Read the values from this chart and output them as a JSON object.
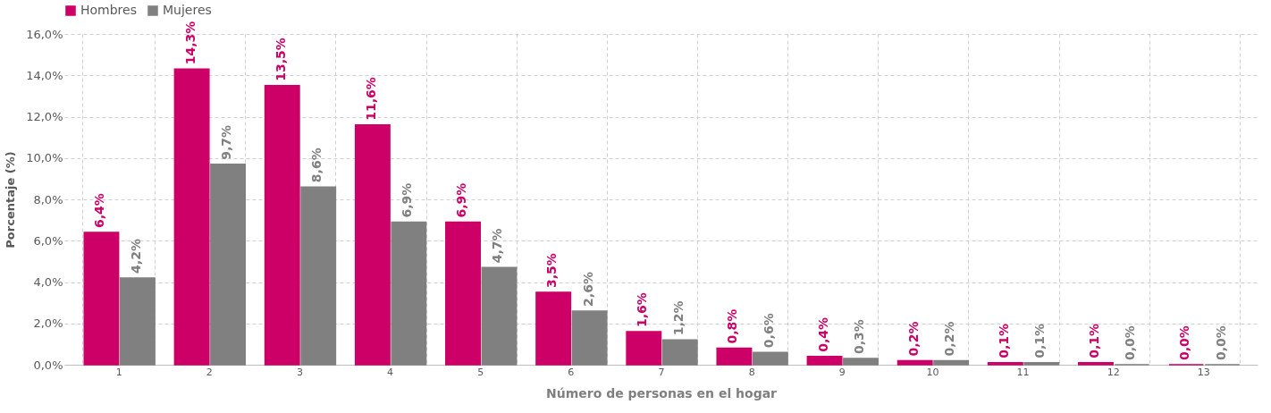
{
  "chart_data": {
    "type": "bar",
    "xlabel": "Número de personas en el hogar",
    "ylabel": "Porcentaje (%)",
    "categories": [
      "1",
      "2",
      "3",
      "4",
      "5",
      "6",
      "7",
      "8",
      "9",
      "10",
      "11",
      "12",
      "13"
    ],
    "series": [
      {
        "name": "Hombres",
        "color": "#cc0066",
        "values": [
          6.4,
          14.3,
          13.5,
          11.6,
          6.9,
          3.5,
          1.6,
          0.8,
          0.4,
          0.2,
          0.1,
          0.1,
          0.0
        ],
        "value_labels": [
          "6,4%",
          "14,3%",
          "13,5%",
          "11,6%",
          "6,9%",
          "3,5%",
          "1,6%",
          "0,8%",
          "0,4%",
          "0,2%",
          "0,1%",
          "0,1%",
          "0,0%"
        ]
      },
      {
        "name": "Mujeres",
        "color": "#808080",
        "values": [
          4.2,
          9.7,
          8.6,
          6.9,
          4.7,
          2.6,
          1.2,
          0.6,
          0.3,
          0.2,
          0.1,
          0.0,
          0.0
        ],
        "value_labels": [
          "4,2%",
          "9,7%",
          "8,6%",
          "6,9%",
          "4,7%",
          "2,6%",
          "1,2%",
          "0,6%",
          "0,3%",
          "0,2%",
          "0,1%",
          "0,0%",
          "0,0%"
        ]
      }
    ],
    "ylim": [
      0,
      16
    ],
    "yticks": [
      {
        "value": 0,
        "label": "0,0%"
      },
      {
        "value": 2,
        "label": "2,0%"
      },
      {
        "value": 4,
        "label": "4,0%"
      },
      {
        "value": 6,
        "label": "6,0%"
      },
      {
        "value": 8,
        "label": "8,0%"
      },
      {
        "value": 10,
        "label": "10,0%"
      },
      {
        "value": 12,
        "label": "12,0%"
      },
      {
        "value": 14,
        "label": "14,0%"
      },
      {
        "value": 16,
        "label": "16,0%"
      }
    ],
    "grid": true,
    "legend": "top"
  }
}
